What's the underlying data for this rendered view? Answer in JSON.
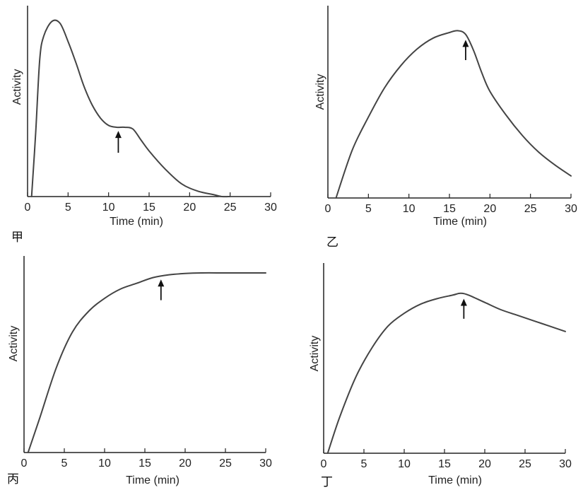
{
  "chart_data": [
    {
      "type": "line",
      "panel_label": "甲",
      "xlabel": "Time (min)",
      "ylabel": "Activity",
      "xlim": [
        0,
        30
      ],
      "ylim": [
        0,
        1
      ],
      "xticks": [
        "0",
        "5",
        "10",
        "15",
        "20",
        "25",
        "30"
      ],
      "grid": false,
      "series": [
        {
          "x": [
            0.5,
            1,
            1.5,
            2,
            3,
            4,
            5,
            6,
            7,
            8,
            9,
            10,
            11,
            12,
            13,
            14,
            15,
            17,
            19,
            21,
            23,
            24,
            25
          ],
          "y": [
            0.0,
            0.35,
            0.75,
            0.88,
            0.96,
            0.95,
            0.85,
            0.73,
            0.6,
            0.5,
            0.43,
            0.39,
            0.38,
            0.38,
            0.37,
            0.31,
            0.25,
            0.15,
            0.07,
            0.03,
            0.01,
            0.0,
            0.0
          ]
        }
      ],
      "annotations": [
        {
          "type": "arrow-up",
          "x": 11.2,
          "y_tip": 0.36,
          "y_tail": 0.24
        }
      ]
    },
    {
      "type": "line",
      "panel_label": "乙",
      "xlabel": "Time (min)",
      "ylabel": "Activity",
      "xlim": [
        0,
        30
      ],
      "ylim": [
        0,
        1
      ],
      "xticks": [
        "0",
        "5",
        "10",
        "15",
        "20",
        "25",
        "30"
      ],
      "grid": false,
      "series": [
        {
          "x": [
            1,
            3,
            5,
            7,
            9,
            11,
            13,
            15,
            16,
            17,
            18,
            19,
            20,
            22,
            24,
            26,
            28,
            30
          ],
          "y": [
            0.0,
            0.26,
            0.44,
            0.6,
            0.72,
            0.81,
            0.87,
            0.9,
            0.91,
            0.89,
            0.8,
            0.68,
            0.58,
            0.45,
            0.34,
            0.25,
            0.18,
            0.12
          ]
        }
      ],
      "annotations": [
        {
          "type": "arrow-up",
          "x": 17,
          "y_tip": 0.86,
          "y_tail": 0.75
        }
      ]
    },
    {
      "type": "line",
      "panel_label": "丙",
      "xlabel": "Time (min)",
      "ylabel": "Activity",
      "xlim": [
        0,
        30
      ],
      "ylim": [
        0,
        1
      ],
      "xticks": [
        "0",
        "5",
        "10",
        "15",
        "20",
        "25",
        "30"
      ],
      "grid": false,
      "series": [
        {
          "x": [
            0.5,
            2,
            4,
            6,
            8,
            10,
            12,
            14,
            16,
            18,
            20,
            22,
            25,
            28,
            30
          ],
          "y": [
            0.0,
            0.19,
            0.45,
            0.64,
            0.75,
            0.82,
            0.87,
            0.9,
            0.93,
            0.945,
            0.952,
            0.955,
            0.955,
            0.955,
            0.955
          ]
        }
      ],
      "annotations": [
        {
          "type": "arrow-up",
          "x": 17,
          "y_tip": 0.92,
          "y_tail": 0.81
        }
      ]
    },
    {
      "type": "line",
      "panel_label": "丁",
      "xlabel": "Time (min)",
      "ylabel": "Activity",
      "xlim": [
        0,
        30
      ],
      "ylim": [
        0,
        1
      ],
      "xticks": [
        "0",
        "5",
        "10",
        "15",
        "20",
        "25",
        "30"
      ],
      "grid": false,
      "series": [
        {
          "x": [
            0.5,
            2,
            4,
            6,
            8,
            10,
            12,
            14,
            16,
            17,
            18,
            20,
            22,
            24,
            26,
            28,
            30
          ],
          "y": [
            0.0,
            0.2,
            0.42,
            0.58,
            0.7,
            0.77,
            0.82,
            0.85,
            0.87,
            0.88,
            0.87,
            0.83,
            0.79,
            0.76,
            0.73,
            0.7,
            0.67
          ]
        }
      ],
      "annotations": [
        {
          "type": "arrow-up",
          "x": 17.4,
          "y_tip": 0.85,
          "y_tail": 0.74
        }
      ]
    }
  ],
  "colors": {
    "curve": "#444444",
    "axis": "#222222",
    "text": "#222222"
  }
}
